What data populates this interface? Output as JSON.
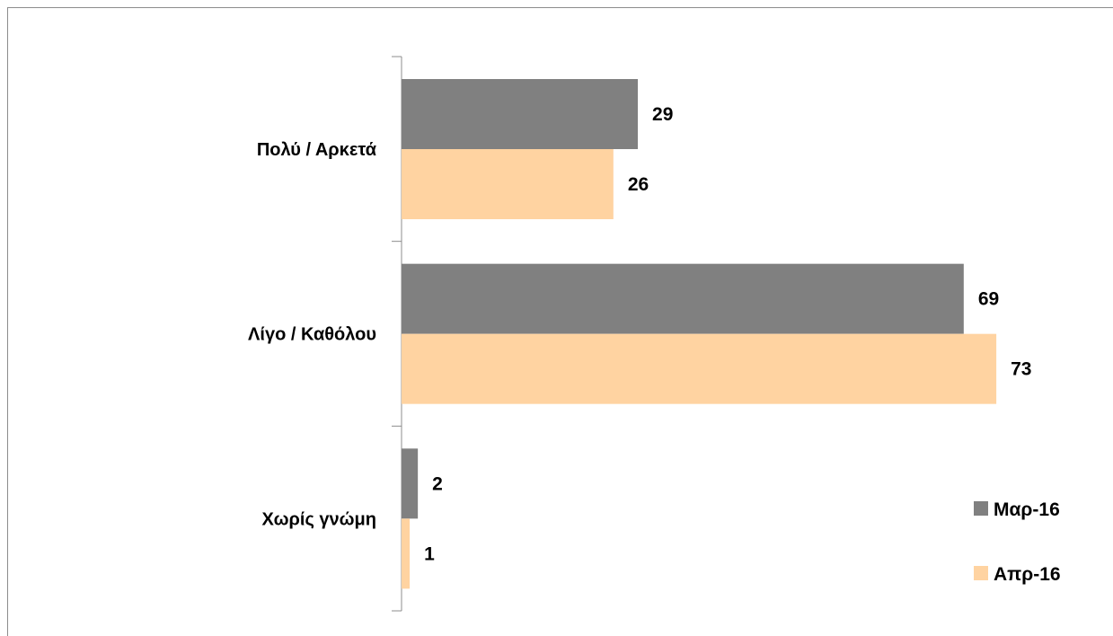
{
  "chart_data": {
    "type": "bar",
    "orientation": "horizontal",
    "categories": [
      "Πολύ / Αρκετά",
      "Λίγο / Καθόλου",
      "Χωρίς γνώμη"
    ],
    "series": [
      {
        "name": "Μαρ-16",
        "values": [
          29,
          69,
          2
        ],
        "color": "#808080"
      },
      {
        "name": "Απρ-16",
        "values": [
          26,
          73,
          1
        ],
        "color": "#FFD3A1"
      }
    ],
    "xlim": [
      0,
      100
    ],
    "grid": false,
    "legend": "bottom-right",
    "title": "",
    "xlabel": "",
    "ylabel": ""
  }
}
